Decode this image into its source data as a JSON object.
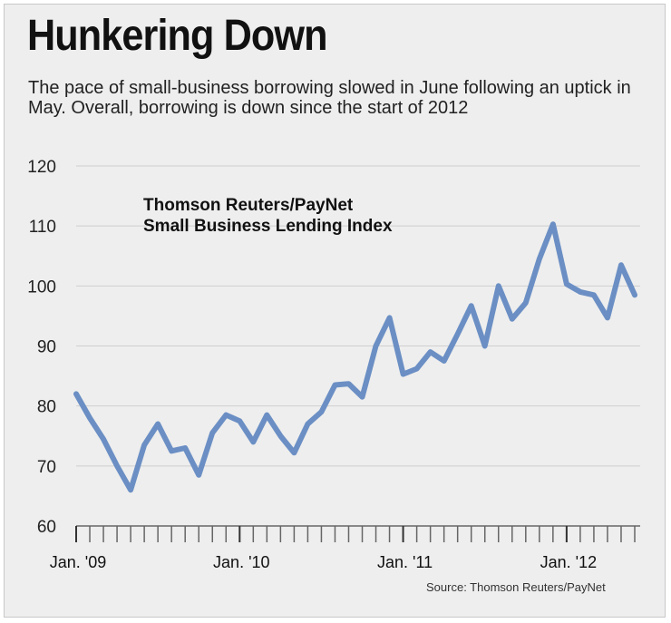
{
  "header": {
    "title": "Hunkering Down",
    "subtitle": "The pace of small-business borrowing slowed in June following an uptick in May. Overall, borrowing is down since the start of 2012"
  },
  "footer": {
    "source": "Source: Thomson Reuters/PayNet"
  },
  "colors": {
    "background": "#eeeeee",
    "line": "#6b8fc4",
    "grid": "#cfcfcf",
    "axis": "#666666"
  },
  "chart_data": {
    "type": "line",
    "annotation": [
      "Thomson Reuters/PayNet",
      "Small Business Lending Index"
    ],
    "ylim": [
      60,
      120
    ],
    "yticks": [
      60,
      70,
      80,
      90,
      100,
      110,
      120
    ],
    "grid": true,
    "x_tick_labels": [
      {
        "label": "Jan. '09",
        "index": 0
      },
      {
        "label": "Jan. '10",
        "index": 12
      },
      {
        "label": "Jan. '11",
        "index": 24
      },
      {
        "label": "Jan. '12",
        "index": 36
      }
    ],
    "x_minor_ticks": 42,
    "series": [
      {
        "values": [
          82,
          78,
          74.5,
          70,
          66,
          73.5,
          77,
          72.5,
          73,
          68.5,
          75.5,
          78.5,
          77.5,
          74,
          78.5,
          75,
          72.2,
          77,
          79,
          83.5,
          83.7,
          81.5,
          90,
          94.7,
          85.3,
          86.2,
          89,
          87.5,
          92,
          96.7,
          90,
          100,
          94.5,
          97.2,
          104.5,
          110.3,
          100.3,
          99,
          98.5,
          94.7,
          103.5,
          98.5
        ]
      }
    ]
  }
}
